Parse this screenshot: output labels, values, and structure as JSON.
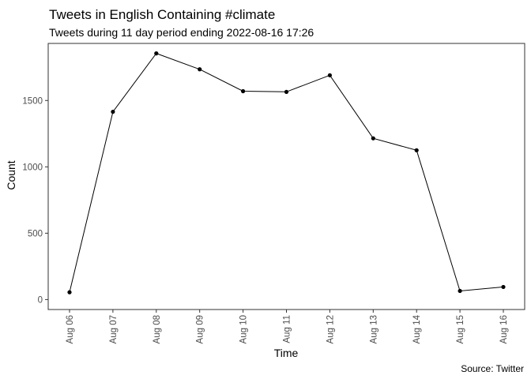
{
  "chart_data": {
    "type": "line",
    "title": "Tweets in English Containing #climate",
    "subtitle": "Tweets during 11 day period ending 2022-08-16 17:26",
    "xlabel": "Time",
    "ylabel": "Count",
    "caption": "Source: Twitter",
    "categories": [
      "Aug 06",
      "Aug 07",
      "Aug 08",
      "Aug 09",
      "Aug 10",
      "Aug 11",
      "Aug 12",
      "Aug 13",
      "Aug 14",
      "Aug 15",
      "Aug 16"
    ],
    "values": [
      55,
      1415,
      1855,
      1735,
      1570,
      1565,
      1690,
      1215,
      1125,
      65,
      95
    ],
    "ylim": [
      -75,
      1930
    ],
    "yticks": [
      0,
      500,
      1000,
      1500
    ],
    "ytick_labels": [
      "0",
      "500",
      "1000",
      "1500"
    ],
    "grid": false,
    "legend": "none",
    "line_color": "#000000",
    "point_color": "#000000"
  }
}
